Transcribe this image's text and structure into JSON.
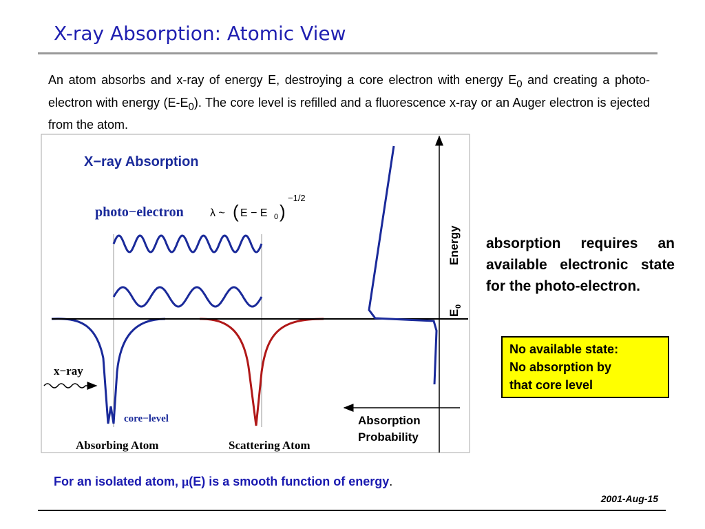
{
  "header": {
    "title": "X-ray Absorption:  Atomic View"
  },
  "intro": [
    "An atom absorbs and x-ray of energy E, destroying a core electron with energy E",
    "0",
    " and creating a photo-electron with energy (E-E",
    "0",
    "). The core level  is refilled and a fluorescence x-ray or an Auger electron is ejected from the atom."
  ],
  "figure": {
    "title": "X−ray Absorption",
    "photo_electron": "photo−electron",
    "lambda": "λ ~",
    "paren_open": "(",
    "energy_diff": "E − E",
    "energy_diff_sub": "0",
    "paren_close": ")",
    "exponent": "−1/2",
    "energy_axis": "Energy",
    "e0": "E",
    "e0_sub": "0",
    "xray": "x−ray",
    "core_level": "core−level",
    "absorbing_atom": "Absorbing Atom",
    "scattering_atom": "Scattering Atom",
    "absorption_axis": [
      "Absorption",
      "Probability"
    ]
  },
  "side_note": "absorption requires an available electronic state for the photo-electron.",
  "callout": [
    "No available state:",
    "No absorption by",
    "that core level"
  ],
  "footer": {
    "text": [
      "For an isolated atom, ",
      "μ",
      "(E) is a  smooth function of energy",
      "."
    ],
    "date": "2001-Aug-15"
  }
}
